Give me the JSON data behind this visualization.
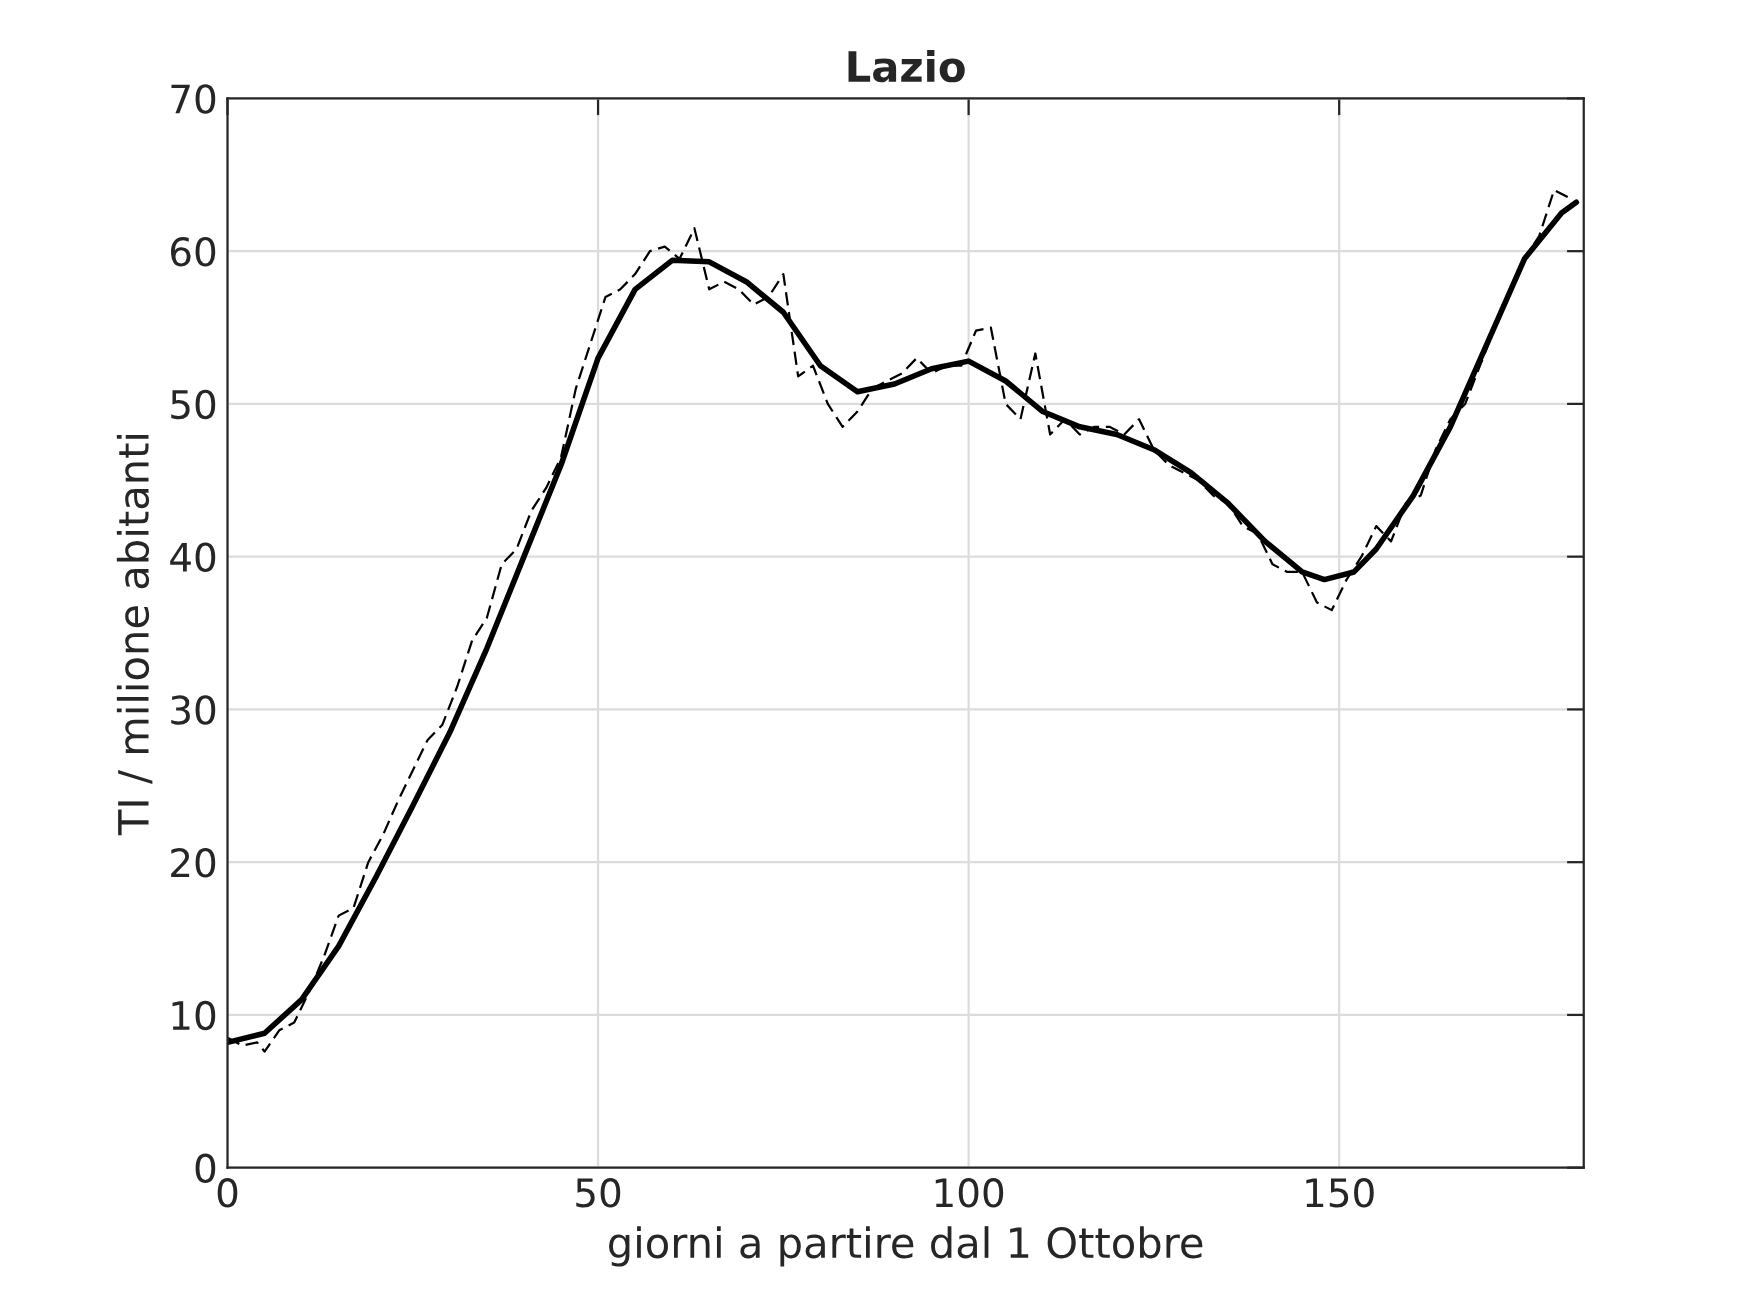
{
  "chart_data": {
    "type": "line",
    "title": "Lazio",
    "xlabel": "giorni a partire dal 1 Ottobre",
    "ylabel": "TI / milione abitanti",
    "xlim": [
      0,
      183
    ],
    "ylim": [
      0,
      70
    ],
    "xticks": [
      0,
      50,
      100,
      150
    ],
    "yticks": [
      0,
      10,
      20,
      30,
      40,
      50,
      60,
      70
    ],
    "grid": true,
    "legend": false,
    "series": [
      {
        "color": "#000000",
        "line_style": "dashed",
        "x": [
          0,
          2,
          4,
          5,
          7,
          9,
          11,
          13,
          15,
          17,
          19,
          21,
          23,
          25,
          27,
          29,
          31,
          33,
          35,
          37,
          39,
          41,
          43,
          45,
          47,
          49,
          51,
          53,
          55,
          57,
          59,
          61,
          63,
          65,
          67,
          69,
          71,
          73,
          75,
          77,
          79,
          81,
          83,
          85,
          87,
          89,
          91,
          93,
          95,
          97,
          99,
          101,
          103,
          105,
          107,
          109,
          111,
          113,
          115,
          117,
          119,
          121,
          123,
          125,
          127,
          129,
          131,
          133,
          135,
          137,
          139,
          141,
          143,
          145,
          147,
          149,
          151,
          153,
          155,
          157,
          159,
          161,
          163,
          165,
          167,
          169,
          171,
          173,
          175,
          177,
          179,
          181
        ],
        "values": [
          8.5,
          8,
          8.2,
          7.6,
          9,
          9.5,
          11.5,
          13.8,
          16.5,
          17,
          20,
          21.8,
          24,
          26,
          28,
          29,
          31.5,
          34.5,
          36,
          39.5,
          40.5,
          43,
          44.5,
          46.5,
          51,
          54,
          57,
          57.5,
          58.5,
          60,
          60.3,
          59.5,
          61.5,
          57.5,
          58,
          57.5,
          56.5,
          57,
          58.5,
          51.8,
          52.5,
          50,
          48.5,
          49.5,
          51,
          51.5,
          52,
          53,
          52,
          52.5,
          52.5,
          54.8,
          55,
          50,
          49,
          53.3,
          48,
          49,
          48,
          48.5,
          48.5,
          48,
          49,
          47,
          46,
          45.5,
          45,
          44,
          43.5,
          42,
          41.5,
          39.5,
          39,
          39,
          37,
          36.5,
          38.5,
          40,
          42,
          41,
          43.5,
          44,
          47,
          49,
          50,
          52.5,
          55,
          57.5,
          59.5,
          61,
          64,
          63.5
        ]
      },
      {
        "color": "#000000",
        "line_style": "solid",
        "x": [
          0,
          5,
          10,
          15,
          20,
          25,
          30,
          35,
          40,
          45,
          50,
          55,
          60,
          65,
          70,
          75,
          80,
          85,
          90,
          95,
          100,
          105,
          110,
          115,
          120,
          125,
          130,
          135,
          140,
          145,
          148,
          152,
          155,
          160,
          165,
          170,
          175,
          180,
          182
        ],
        "values": [
          8.2,
          8.8,
          11,
          14.5,
          19,
          23.7,
          28.5,
          34,
          40,
          46,
          53,
          57.5,
          59.4,
          59.3,
          58,
          56,
          52.5,
          50.8,
          51.3,
          52.3,
          52.8,
          51.5,
          49.5,
          48.5,
          48,
          47,
          45.5,
          43.5,
          41,
          39,
          38.5,
          39,
          40.5,
          44,
          48.5,
          54,
          59.5,
          62.5,
          63.2
        ]
      }
    ]
  }
}
